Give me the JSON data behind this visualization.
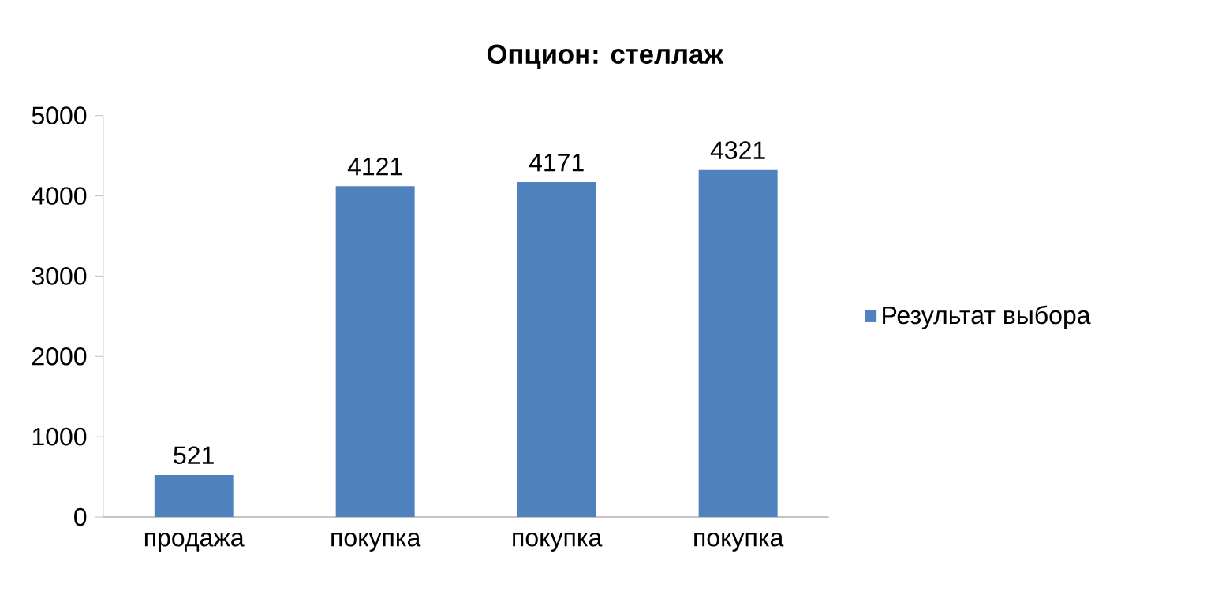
{
  "chart_data": {
    "type": "bar",
    "title": "Опцион: стеллаж",
    "categories": [
      "продажа",
      "покупка",
      "покупка",
      "покупка"
    ],
    "series": [
      {
        "name": "Результат выбора",
        "color": "#4f81bd",
        "values": [
          521,
          4121,
          4171,
          4321
        ]
      }
    ],
    "ylim": [
      0,
      5000
    ],
    "yticks": [
      0,
      1000,
      2000,
      3000,
      4000,
      5000
    ],
    "data_labels": true,
    "legend": "right",
    "grid": false
  }
}
